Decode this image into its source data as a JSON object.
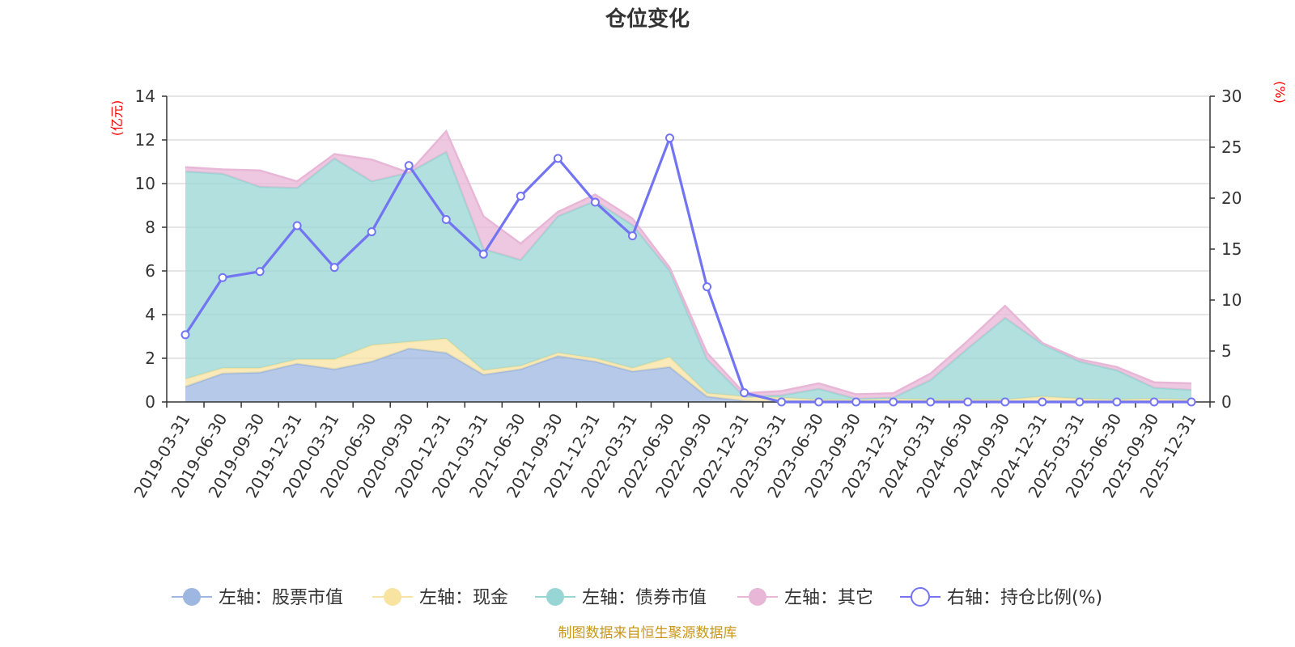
{
  "chart_data": {
    "type": "area",
    "title": "仓位变化",
    "left_unit": "(亿元)",
    "right_unit": "(%)",
    "ylim_left": [
      0,
      14
    ],
    "ylim_right": [
      0,
      30
    ],
    "yticks_left": [
      "0",
      "2",
      "4",
      "6",
      "8",
      "10",
      "12",
      "14"
    ],
    "yticks_right": [
      "0",
      "5",
      "10",
      "15",
      "20",
      "25",
      "30"
    ],
    "categories": [
      "2019-03-31",
      "2019-06-30",
      "2019-09-30",
      "2019-12-31",
      "2020-03-31",
      "2020-06-30",
      "2020-09-30",
      "2020-12-31",
      "2021-03-31",
      "2021-06-30",
      "2021-09-30",
      "2021-12-31",
      "2022-03-31",
      "2022-06-30",
      "2022-09-30",
      "2022-12-31",
      "2023-03-31",
      "2023-06-30",
      "2023-09-30",
      "2023-12-31",
      "2024-03-31",
      "2024-06-30",
      "2024-09-30",
      "2024-12-31",
      "2025-03-31",
      "2025-06-30",
      "2025-09-30",
      "2025-12-31"
    ],
    "series": [
      {
        "name": "左轴：股票市值",
        "axis": "left",
        "stacked": true,
        "color": "#9db7e0",
        "values": [
          0.7,
          1.3,
          1.35,
          1.75,
          1.5,
          1.85,
          2.45,
          2.25,
          1.25,
          1.5,
          2.1,
          1.85,
          1.4,
          1.6,
          0.25,
          0.05,
          0,
          0,
          0,
          0,
          0,
          0,
          0,
          0,
          0,
          0,
          0,
          0
        ]
      },
      {
        "name": "左轴：现金",
        "axis": "left",
        "stacked": true,
        "color": "#f8e3a1",
        "values": [
          0.35,
          0.25,
          0.2,
          0.2,
          0.45,
          0.75,
          0.3,
          0.65,
          0.2,
          0.15,
          0.15,
          0.15,
          0.15,
          0.45,
          0.15,
          0.2,
          0.2,
          0.1,
          0.1,
          0.15,
          0.1,
          0.1,
          0.1,
          0.25,
          0.15,
          0.1,
          0.15,
          0.1
        ]
      },
      {
        "name": "左轴：债券市值",
        "axis": "left",
        "stacked": true,
        "color": "#97d6d4",
        "values": [
          9.5,
          8.9,
          8.3,
          7.85,
          9.2,
          7.5,
          7.75,
          8.55,
          5.55,
          4.85,
          6.25,
          7.2,
          6.55,
          3.95,
          1.55,
          0,
          0.1,
          0.5,
          0.05,
          0.05,
          0.9,
          2.35,
          3.75,
          2.4,
          1.7,
          1.35,
          0.5,
          0.45
        ]
      },
      {
        "name": "左轴：其它",
        "axis": "left",
        "stacked": true,
        "color": "#e8b6d6",
        "values": [
          0.2,
          0.2,
          0.75,
          0.3,
          0.2,
          1.0,
          0.0,
          0.95,
          1.5,
          0.75,
          0.2,
          0.3,
          0.3,
          0.15,
          0.3,
          0.15,
          0.2,
          0.25,
          0.2,
          0.2,
          0.3,
          0.35,
          0.55,
          0.05,
          0.1,
          0.15,
          0.25,
          0.3
        ]
      },
      {
        "name": "右轴：持仓比例(%)",
        "axis": "right",
        "stacked": false,
        "color": "#7274f2",
        "values": [
          6.6,
          12.2,
          12.8,
          17.3,
          13.2,
          16.7,
          23.2,
          17.9,
          14.5,
          20.2,
          23.9,
          19.6,
          16.3,
          25.9,
          11.3,
          0.9,
          0,
          0,
          0,
          0,
          0,
          0,
          0,
          0,
          0,
          0,
          0,
          0
        ]
      }
    ]
  },
  "source_text": "制图数据来自恒生聚源数据库"
}
